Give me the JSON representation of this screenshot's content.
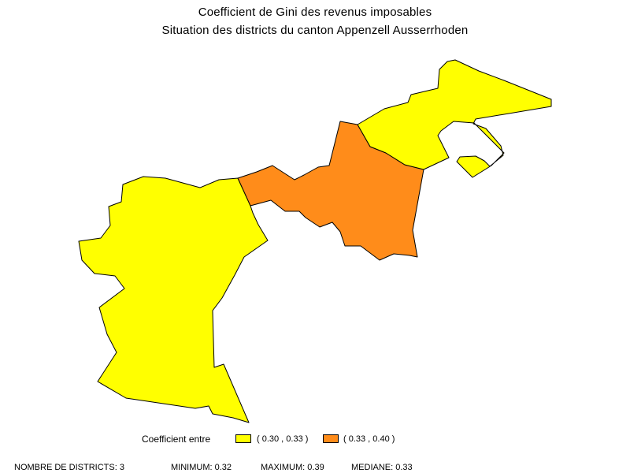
{
  "title": "Coefficient de Gini des revenus imposables",
  "subtitle": "Situation des districts du canton Appenzell Ausserrhoden",
  "colors": {
    "class_1": "#ffff00",
    "class_2": "#ff8c1a",
    "border": "#000000"
  },
  "districts": [
    {
      "class": 1,
      "value_range": "( 0.30 , 0.33 )"
    },
    {
      "class": 2,
      "value_range": "( 0.33 , 0.40 )"
    },
    {
      "class": 1,
      "value_range": "( 0.30 , 0.33 )"
    }
  ],
  "legend": {
    "label": "Coefficient entre",
    "items": [
      {
        "range": "( 0.30 , 0.33 )",
        "color": "#ffff00"
      },
      {
        "range": "( 0.33 , 0.40 )",
        "color": "#ff8c1a"
      }
    ]
  },
  "footer": {
    "count": "NOMBRE DE DISTRICTS: 3",
    "minimum": "MINIMUM: 0.32",
    "maximum": "MAXIMUM: 0.39",
    "median": "MEDIANE: 0.33"
  }
}
